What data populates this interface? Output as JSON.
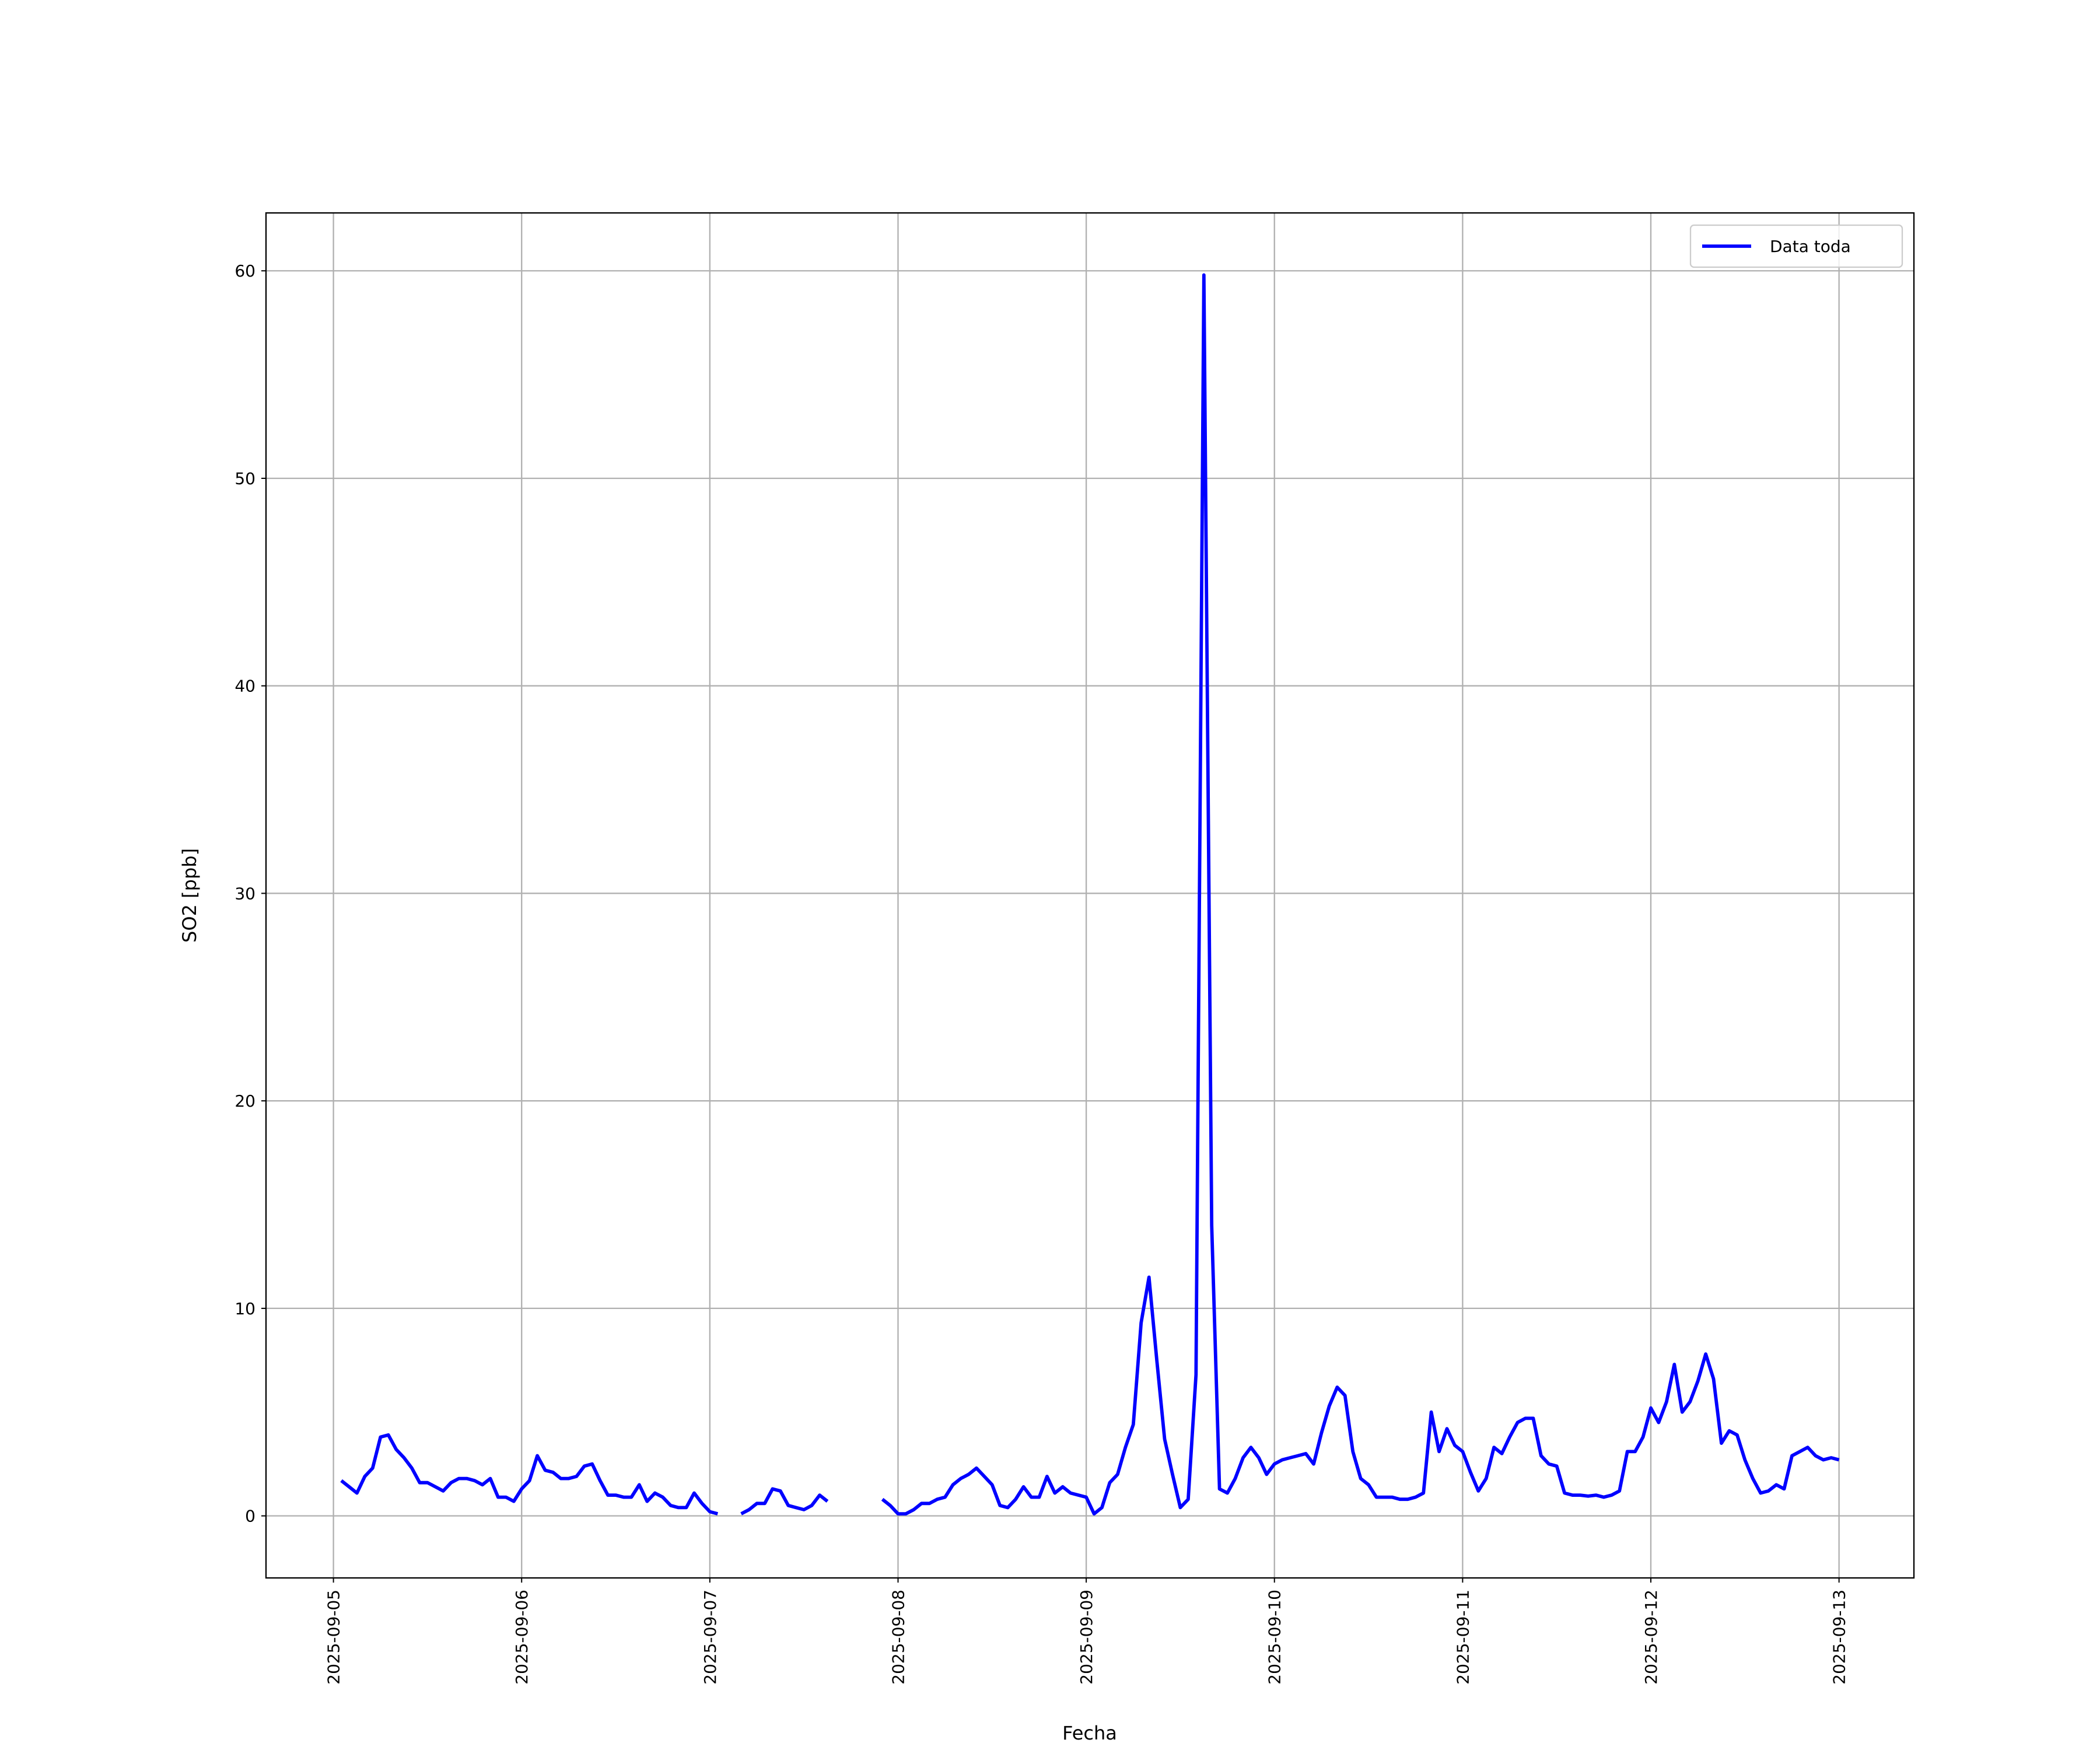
{
  "chart_data": {
    "type": "line",
    "xlabel": "Fecha",
    "ylabel": "SO2 [ppb]",
    "x": [
      "2025-09-05 01:00",
      "2025-09-05 02:00",
      "2025-09-05 03:00",
      "2025-09-05 04:00",
      "2025-09-05 05:00",
      "2025-09-05 06:00",
      "2025-09-05 07:00",
      "2025-09-05 08:00",
      "2025-09-05 09:00",
      "2025-09-05 10:00",
      "2025-09-05 11:00",
      "2025-09-05 12:00",
      "2025-09-05 13:00",
      "2025-09-05 14:00",
      "2025-09-05 15:00",
      "2025-09-05 16:00",
      "2025-09-05 17:00",
      "2025-09-05 18:00",
      "2025-09-05 19:00",
      "2025-09-05 20:00",
      "2025-09-05 21:00",
      "2025-09-05 22:00",
      "2025-09-05 23:00",
      "2025-09-06 00:00",
      "2025-09-06 01:00",
      "2025-09-06 02:00",
      "2025-09-06 03:00",
      "2025-09-06 04:00",
      "2025-09-06 05:00",
      "2025-09-06 06:00",
      "2025-09-06 07:00",
      "2025-09-06 08:00",
      "2025-09-06 09:00",
      "2025-09-06 10:00",
      "2025-09-06 11:00",
      "2025-09-06 12:00",
      "2025-09-06 13:00",
      "2025-09-06 14:00",
      "2025-09-06 15:00",
      "2025-09-06 16:00",
      "2025-09-06 17:00",
      "2025-09-06 18:00",
      "2025-09-06 19:00",
      "2025-09-06 20:00",
      "2025-09-06 21:00",
      "2025-09-06 22:00",
      "2025-09-06 23:00",
      "2025-09-07 00:00",
      "2025-09-07 01:00",
      "2025-09-07 02:00",
      "2025-09-07 04:00",
      "2025-09-07 05:00",
      "2025-09-07 06:00",
      "2025-09-07 07:00",
      "2025-09-07 08:00",
      "2025-09-07 09:00",
      "2025-09-07 10:00",
      "2025-09-07 11:00",
      "2025-09-07 12:00",
      "2025-09-07 13:00",
      "2025-09-07 14:00",
      "2025-09-07 15:00",
      "2025-09-07 16:00",
      "2025-09-07 22:00",
      "2025-09-07 23:00",
      "2025-09-08 00:00",
      "2025-09-08 01:00",
      "2025-09-08 02:00",
      "2025-09-08 03:00",
      "2025-09-08 04:00",
      "2025-09-08 05:00",
      "2025-09-08 06:00",
      "2025-09-08 07:00",
      "2025-09-08 08:00",
      "2025-09-08 09:00",
      "2025-09-08 10:00",
      "2025-09-08 11:00",
      "2025-09-08 12:00",
      "2025-09-08 13:00",
      "2025-09-08 14:00",
      "2025-09-08 15:00",
      "2025-09-08 16:00",
      "2025-09-08 17:00",
      "2025-09-08 18:00",
      "2025-09-08 19:00",
      "2025-09-08 20:00",
      "2025-09-08 21:00",
      "2025-09-08 22:00",
      "2025-09-08 23:00",
      "2025-09-09 00:00",
      "2025-09-09 01:00",
      "2025-09-09 02:00",
      "2025-09-09 03:00",
      "2025-09-09 04:00",
      "2025-09-09 05:00",
      "2025-09-09 06:00",
      "2025-09-09 07:00",
      "2025-09-09 08:00",
      "2025-09-09 09:00",
      "2025-09-09 10:00",
      "2025-09-09 11:00",
      "2025-09-09 12:00",
      "2025-09-09 13:00",
      "2025-09-09 14:00",
      "2025-09-09 15:00",
      "2025-09-09 16:00",
      "2025-09-09 17:00",
      "2025-09-09 18:00",
      "2025-09-09 19:00",
      "2025-09-09 20:00",
      "2025-09-09 21:00",
      "2025-09-09 22:00",
      "2025-09-09 23:00",
      "2025-09-10 00:00",
      "2025-09-10 01:00",
      "2025-09-10 02:00",
      "2025-09-10 03:00",
      "2025-09-10 04:00",
      "2025-09-10 05:00",
      "2025-09-10 06:00",
      "2025-09-10 07:00",
      "2025-09-10 08:00",
      "2025-09-10 09:00",
      "2025-09-10 10:00",
      "2025-09-10 11:00",
      "2025-09-10 12:00",
      "2025-09-10 13:00",
      "2025-09-10 14:00",
      "2025-09-10 15:00",
      "2025-09-10 16:00",
      "2025-09-10 17:00",
      "2025-09-10 18:00",
      "2025-09-10 19:00",
      "2025-09-10 20:00",
      "2025-09-10 21:00",
      "2025-09-10 22:00",
      "2025-09-10 23:00",
      "2025-09-11 00:00",
      "2025-09-11 01:00",
      "2025-09-11 02:00",
      "2025-09-11 03:00",
      "2025-09-11 04:00",
      "2025-09-11 05:00",
      "2025-09-11 06:00",
      "2025-09-11 07:00",
      "2025-09-11 08:00",
      "2025-09-11 09:00",
      "2025-09-11 10:00",
      "2025-09-11 11:00",
      "2025-09-11 12:00",
      "2025-09-11 13:00",
      "2025-09-11 14:00",
      "2025-09-11 15:00",
      "2025-09-11 16:00",
      "2025-09-11 17:00",
      "2025-09-11 18:00",
      "2025-09-11 19:00",
      "2025-09-11 20:00",
      "2025-09-11 21:00",
      "2025-09-11 22:00",
      "2025-09-11 23:00",
      "2025-09-12 00:00",
      "2025-09-12 01:00",
      "2025-09-12 02:00",
      "2025-09-12 03:00",
      "2025-09-12 04:00",
      "2025-09-12 05:00",
      "2025-09-12 06:00",
      "2025-09-12 07:00",
      "2025-09-12 08:00",
      "2025-09-12 09:00",
      "2025-09-12 10:00",
      "2025-09-12 11:00",
      "2025-09-12 12:00",
      "2025-09-12 13:00",
      "2025-09-12 14:00",
      "2025-09-12 15:00",
      "2025-09-12 16:00",
      "2025-09-12 17:00",
      "2025-09-12 18:00",
      "2025-09-12 19:00",
      "2025-09-12 20:00",
      "2025-09-12 21:00",
      "2025-09-12 22:00",
      "2025-09-12 23:00",
      "2025-09-13 00:00"
    ],
    "series": [
      {
        "name": "Data toda",
        "color": "#0000ff",
        "values": [
          1.7,
          1.4,
          1.1,
          1.9,
          2.3,
          3.8,
          3.9,
          3.2,
          2.8,
          2.3,
          1.6,
          1.6,
          1.4,
          1.2,
          1.6,
          1.8,
          1.8,
          1.7,
          1.5,
          1.8,
          0.9,
          0.9,
          0.7,
          1.3,
          1.7,
          2.9,
          2.2,
          2.1,
          1.8,
          1.8,
          1.9,
          2.4,
          2.5,
          1.7,
          1.0,
          1.0,
          0.9,
          0.9,
          1.5,
          0.7,
          1.1,
          0.9,
          0.5,
          0.4,
          0.4,
          1.1,
          0.6,
          0.2,
          0.1,
          null,
          0.1,
          0.3,
          0.6,
          0.6,
          1.3,
          1.2,
          0.5,
          0.4,
          0.3,
          0.5,
          1.0,
          0.7,
          null,
          0.8,
          0.5,
          0.1,
          0.1,
          0.3,
          0.6,
          0.6,
          0.8,
          0.9,
          1.5,
          1.8,
          2.0,
          2.3,
          1.9,
          1.5,
          0.5,
          0.4,
          0.8,
          1.4,
          0.9,
          0.9,
          1.9,
          1.1,
          1.4,
          1.1,
          1.0,
          0.9,
          0.1,
          0.4,
          1.6,
          2.0,
          3.3,
          4.4,
          9.3,
          11.5,
          7.5,
          3.7,
          2.0,
          0.4,
          0.8,
          6.8,
          59.8,
          14,
          1.3,
          1.1,
          1.8,
          2.8,
          3.3,
          2.8,
          2.0,
          2.5,
          2.7,
          2.8,
          2.9,
          3.0,
          2.5,
          4.0,
          5.3,
          6.2,
          5.8,
          3.1,
          1.8,
          1.5,
          0.9,
          0.9,
          0.9,
          0.8,
          0.8,
          0.9,
          1.1,
          5.0,
          3.1,
          4.2,
          3.4,
          3.1,
          2.1,
          1.2,
          1.8,
          3.3,
          3.0,
          3.8,
          4.5,
          4.7,
          4.7,
          2.9,
          2.5,
          2.4,
          1.1,
          1.0,
          1.0,
          0.95,
          1.0,
          0.9,
          1.0,
          1.2,
          3.1,
          3.1,
          3.8,
          5.2,
          4.5,
          5.5,
          7.3,
          5.0,
          5.5,
          6.5,
          7.8,
          6.6,
          3.5,
          4.1,
          3.9,
          2.7,
          1.8,
          1.1,
          1.2,
          1.5,
          1.3,
          2.9,
          3.1,
          3.3,
          2.9,
          2.7,
          2.8,
          2.7
        ]
      }
    ],
    "xlim": [
      "2025-09-04 15:24",
      "2025-09-13 09:33"
    ],
    "xticks": [
      "2025-09-05",
      "2025-09-06",
      "2025-09-07",
      "2025-09-08",
      "2025-09-09",
      "2025-09-10",
      "2025-09-11",
      "2025-09-12",
      "2025-09-13"
    ],
    "ylim": [
      -2.99,
      62.79
    ],
    "yticks": [
      0,
      10,
      20,
      30,
      40,
      50,
      60
    ],
    "grid": true,
    "legend": "upper right"
  }
}
